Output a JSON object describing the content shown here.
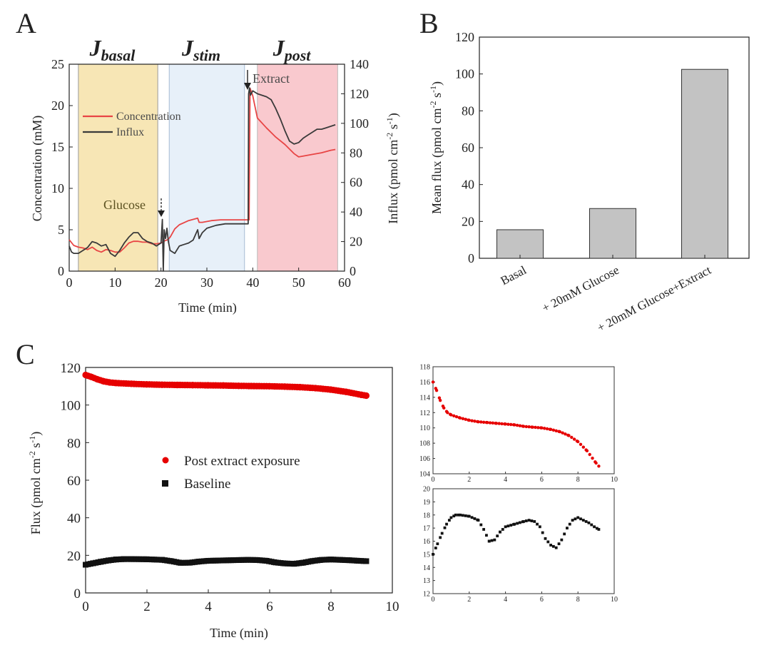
{
  "panels": {
    "a": "A",
    "b": "B",
    "c": "C"
  },
  "colors": {
    "concentration": "#e84545",
    "influx": "#3a3a3a",
    "basal_region": "#f7e6b5",
    "stim_region": "#e7f0f9",
    "post_region": "#f9c9ce",
    "bar_fill": "#c3c3c3",
    "post_marker": "#e60000",
    "baseline_marker": "#111111"
  },
  "chart_data": [
    {
      "id": "A",
      "type": "line",
      "xlabel": "Time (min)",
      "ylabel_left": "Concentration (mM)",
      "ylabel_right": "Influx (pmol cm-2 s-1)",
      "xlim": [
        0,
        60
      ],
      "ylim_left": [
        0,
        25
      ],
      "ylim_right": [
        0,
        140
      ],
      "xticks": [
        0,
        10,
        20,
        30,
        40,
        50,
        60
      ],
      "yticks_left": [
        0,
        5,
        10,
        15,
        20,
        25
      ],
      "yticks_right": [
        0,
        20,
        40,
        60,
        80,
        100,
        120,
        140
      ],
      "phases": [
        {
          "label": "J",
          "sub": "basal",
          "start": 2,
          "end": 19.3
        },
        {
          "label": "J",
          "sub": "stim",
          "start": 21.8,
          "end": 38.2
        },
        {
          "label": "J",
          "sub": "post",
          "start": 41,
          "end": 58.5
        }
      ],
      "legend": [
        {
          "name": "Concentration"
        },
        {
          "name": "Influx"
        }
      ],
      "annotations": [
        {
          "text": "Glucose",
          "x": 20,
          "y_conc": 7.5
        },
        {
          "text": "Extract",
          "x": 39,
          "y_conc": 24
        }
      ],
      "series": [
        {
          "name": "Concentration",
          "axis": "left",
          "x": [
            0,
            1,
            2,
            3,
            4,
            5,
            6,
            7,
            8,
            9,
            10,
            11,
            12,
            13,
            14,
            15,
            16,
            17,
            18,
            19,
            20,
            20.6,
            21,
            21.5,
            22,
            23,
            24,
            26,
            28,
            28.3,
            29,
            31,
            33,
            35,
            37,
            38.8,
            39.2,
            39.4,
            40,
            41,
            43,
            45,
            47,
            49,
            50,
            51,
            53,
            55,
            57,
            58
          ],
          "y": [
            3.8,
            3.1,
            2.9,
            2.8,
            2.6,
            2.9,
            2.5,
            2.3,
            2.6,
            2.5,
            2.3,
            2.3,
            2.8,
            3.4,
            3.6,
            3.6,
            3.5,
            3.5,
            3.3,
            3.3,
            3.4,
            3.6,
            3.7,
            3.8,
            4.1,
            5.1,
            5.6,
            6.1,
            6.4,
            5.9,
            5.9,
            6.1,
            6.2,
            6.2,
            6.2,
            6.2,
            6.2,
            22.1,
            21.2,
            18.5,
            17.3,
            16.2,
            15.3,
            14.2,
            13.8,
            13.9,
            14.1,
            14.3,
            14.6,
            14.7
          ]
        },
        {
          "name": "Influx",
          "axis": "right",
          "x": [
            0,
            0.5,
            1,
            2,
            3,
            4,
            5,
            6,
            7,
            8,
            9,
            10,
            11,
            12,
            13,
            14,
            15,
            16,
            17,
            18,
            19,
            20,
            20.3,
            20.5,
            20.7,
            21,
            21.3,
            21.6,
            22,
            23,
            24,
            25,
            26,
            27,
            28,
            28.3,
            29,
            30,
            32,
            34,
            36,
            38,
            39,
            39.1,
            39.3,
            39.5,
            40,
            41,
            42,
            43,
            44,
            45,
            46,
            47,
            48,
            49,
            50,
            51,
            52,
            53,
            54,
            55,
            56,
            57,
            58
          ],
          "y": [
            17,
            13,
            12,
            12,
            14,
            16,
            20,
            19,
            17,
            18,
            12,
            10,
            14,
            19,
            23,
            26,
            26,
            22,
            20,
            19,
            17,
            19,
            35,
            0,
            28,
            22,
            29,
            20,
            14,
            12,
            17,
            18,
            19,
            21,
            28,
            22,
            26,
            29,
            31,
            32,
            32,
            32,
            32,
            120,
            124,
            119,
            122,
            120,
            119,
            118,
            116,
            110,
            103,
            95,
            88,
            86,
            87,
            90,
            92,
            94,
            96,
            96,
            97,
            98,
            99
          ]
        }
      ]
    },
    {
      "id": "B",
      "type": "bar",
      "ylabel": "Mean flux (pmol cm-2 s-1)",
      "ylim": [
        0,
        120
      ],
      "yticks": [
        0,
        20,
        40,
        60,
        80,
        100,
        120
      ],
      "categories": [
        "Basal",
        "+ 20mM Glucose",
        "+ 20mM Glucose+Extract"
      ],
      "values": [
        15.5,
        27,
        102.5
      ]
    },
    {
      "id": "C",
      "type": "scatter",
      "xlabel": "Time (min)",
      "ylabel": "Flux (pmol cm-2 s-1)",
      "xlim": [
        0,
        10
      ],
      "ylim": [
        0,
        120
      ],
      "xticks": [
        0,
        2,
        4,
        6,
        8,
        10
      ],
      "yticks": [
        0,
        20,
        40,
        60,
        80,
        100,
        120
      ],
      "legend": [
        {
          "name": "Post extract exposure"
        },
        {
          "name": "Baseline"
        }
      ],
      "series": [
        {
          "name": "Post extract exposure",
          "x": [
            0,
            0.2,
            0.4,
            0.6,
            0.8,
            1,
            1.5,
            2,
            2.5,
            3,
            3.5,
            4,
            4.5,
            5,
            5.5,
            6,
            6.5,
            7,
            7.5,
            8,
            8.5,
            9,
            9.15
          ],
          "y": [
            116,
            114.9,
            113.6,
            112.6,
            112,
            111.7,
            111.3,
            111,
            110.8,
            110.7,
            110.6,
            110.5,
            110.4,
            110.2,
            110.1,
            110,
            109.8,
            109.5,
            109,
            108.2,
            107,
            105.4,
            105
          ]
        },
        {
          "name": "Baseline",
          "x": [
            0,
            0.25,
            0.5,
            0.75,
            1,
            1.25,
            1.5,
            2,
            2.5,
            2.8,
            3.1,
            3.4,
            3.7,
            4,
            4.5,
            5,
            5.3,
            5.6,
            5.9,
            6.2,
            6.5,
            6.8,
            7.1,
            7.4,
            7.7,
            8,
            8.3,
            8.6,
            8.9,
            9.15
          ],
          "y": [
            15,
            15.8,
            16.6,
            17.3,
            17.8,
            18,
            18,
            17.9,
            17.6,
            16.9,
            16,
            16.1,
            16.7,
            17.1,
            17.3,
            17.5,
            17.6,
            17.5,
            17.1,
            16.2,
            15.7,
            15.5,
            16.1,
            17,
            17.6,
            17.8,
            17.6,
            17.4,
            17.1,
            16.9
          ]
        }
      ]
    },
    {
      "id": "C-inset-post",
      "type": "scatter",
      "xlim": [
        0,
        10
      ],
      "ylim": [
        104,
        118
      ],
      "xticks": [
        0,
        2,
        4,
        6,
        8,
        10
      ],
      "yticks": [
        104,
        106,
        108,
        110,
        112,
        114,
        116,
        118
      ],
      "series_ref": "Post extract exposure"
    },
    {
      "id": "C-inset-baseline",
      "type": "scatter",
      "xlim": [
        0,
        10
      ],
      "ylim": [
        12,
        20
      ],
      "xticks": [
        0,
        2,
        4,
        6,
        8,
        10
      ],
      "yticks": [
        12,
        13,
        14,
        15,
        16,
        17,
        18,
        19,
        20
      ],
      "series_ref": "Baseline"
    }
  ]
}
